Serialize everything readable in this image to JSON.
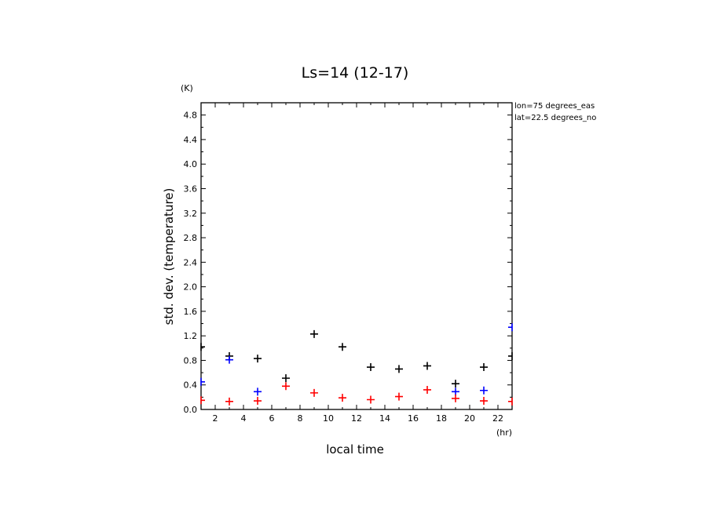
{
  "chart_data": {
    "type": "scatter",
    "title": "Ls=14 (12-17)",
    "xlabel": "local time",
    "ylabel": "std. dev. (temperature)",
    "x_unit": "(hr)",
    "y_unit": "(K)",
    "xlim": [
      1,
      23
    ],
    "ylim": [
      0,
      5.0
    ],
    "x_ticks": [
      2,
      4,
      6,
      8,
      10,
      12,
      14,
      16,
      18,
      20,
      22
    ],
    "y_ticks": [
      0.0,
      0.4,
      0.8,
      1.2,
      1.6,
      2.0,
      2.4,
      2.8,
      3.2,
      3.6,
      4.0,
      4.4,
      4.8
    ],
    "annotations": [
      "lon=75 degrees_eas",
      "lat=22.5 degrees_no"
    ],
    "grid": false,
    "series": [
      {
        "color": "#000000",
        "x": [
          1,
          3,
          5,
          7,
          9,
          11,
          13,
          15,
          17,
          19,
          21,
          23
        ],
        "values": [
          1.02,
          0.87,
          0.83,
          0.51,
          1.23,
          1.02,
          0.69,
          0.66,
          0.71,
          0.42,
          0.69,
          0.87
        ]
      },
      {
        "color": "#0000ff",
        "x": [
          1,
          3,
          5,
          19,
          21,
          23
        ],
        "values": [
          0.45,
          0.81,
          0.29,
          0.29,
          0.31,
          1.34
        ]
      },
      {
        "color": "#ff0000",
        "x": [
          1,
          3,
          5,
          7,
          9,
          11,
          13,
          15,
          17,
          19,
          21,
          23
        ],
        "values": [
          0.15,
          0.13,
          0.14,
          0.38,
          0.27,
          0.19,
          0.16,
          0.21,
          0.32,
          0.18,
          0.14,
          0.13
        ]
      }
    ]
  }
}
